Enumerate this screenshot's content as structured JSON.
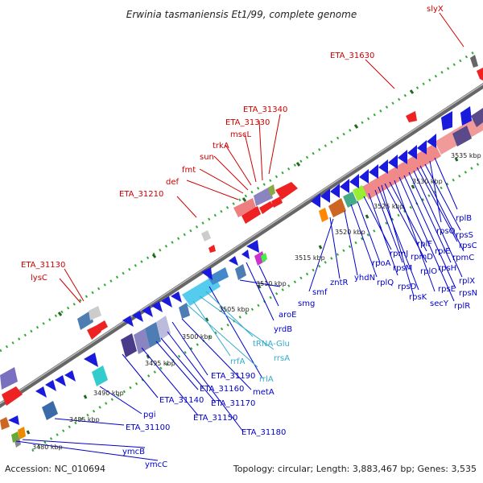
{
  "title": "Erwinia tasmaniensis Et1/99, complete genome",
  "footer": {
    "accession": "Accession: NC_010694",
    "summary": "Topology: circular; Length: 3,883,467 bp; Genes: 3,535"
  },
  "colors": {
    "backbone": "#8a8a8a",
    "gene_label_forward": "#cc0000",
    "gene_label_reverse": "#0000cc",
    "rna_label": "#33aacc",
    "dots": "#33aa33",
    "ticks": "#226622"
  },
  "scale_labels": [
    "3480 kbp",
    "3485 kbp",
    "3490 kbp",
    "3495 kbp",
    "3500 kbp",
    "3505 kbp",
    "3510 kbp",
    "3515 kbp",
    "3520 kbp",
    "3525 kbp",
    "3530 kbp",
    "3535 kbp"
  ],
  "upper_labels": [
    "lysC",
    "ETA_31130",
    "ETA_31210",
    "def",
    "fmt",
    "sun",
    "trkA",
    "mscL",
    "ETA_31330",
    "ETA_31340",
    "ETA_31630",
    "slyX"
  ],
  "lower_labels": [
    "ymcC",
    "ymcB",
    "ETA_31100",
    "pgi",
    "ETA_31140",
    "ETA_31150",
    "ETA_31160",
    "ETA_31170",
    "ETA_31180",
    "ETA_31190",
    "metA",
    "rrlA",
    "rrfA",
    "rrsA",
    "tRNA-Glu",
    "yrdB",
    "aroE",
    "smg",
    "smf",
    "zntR",
    "yhdN",
    "rplQ",
    "rpoA",
    "rpsD",
    "rpsK",
    "rpmJ",
    "rpsM",
    "secY",
    "rplO",
    "rpmD",
    "rpsE",
    "rplR",
    "rplF",
    "rpsH",
    "rplX",
    "rpsN",
    "rplE",
    "rpmC",
    "rpsC",
    "rpsS",
    "rpsQ",
    "rplB"
  ]
}
